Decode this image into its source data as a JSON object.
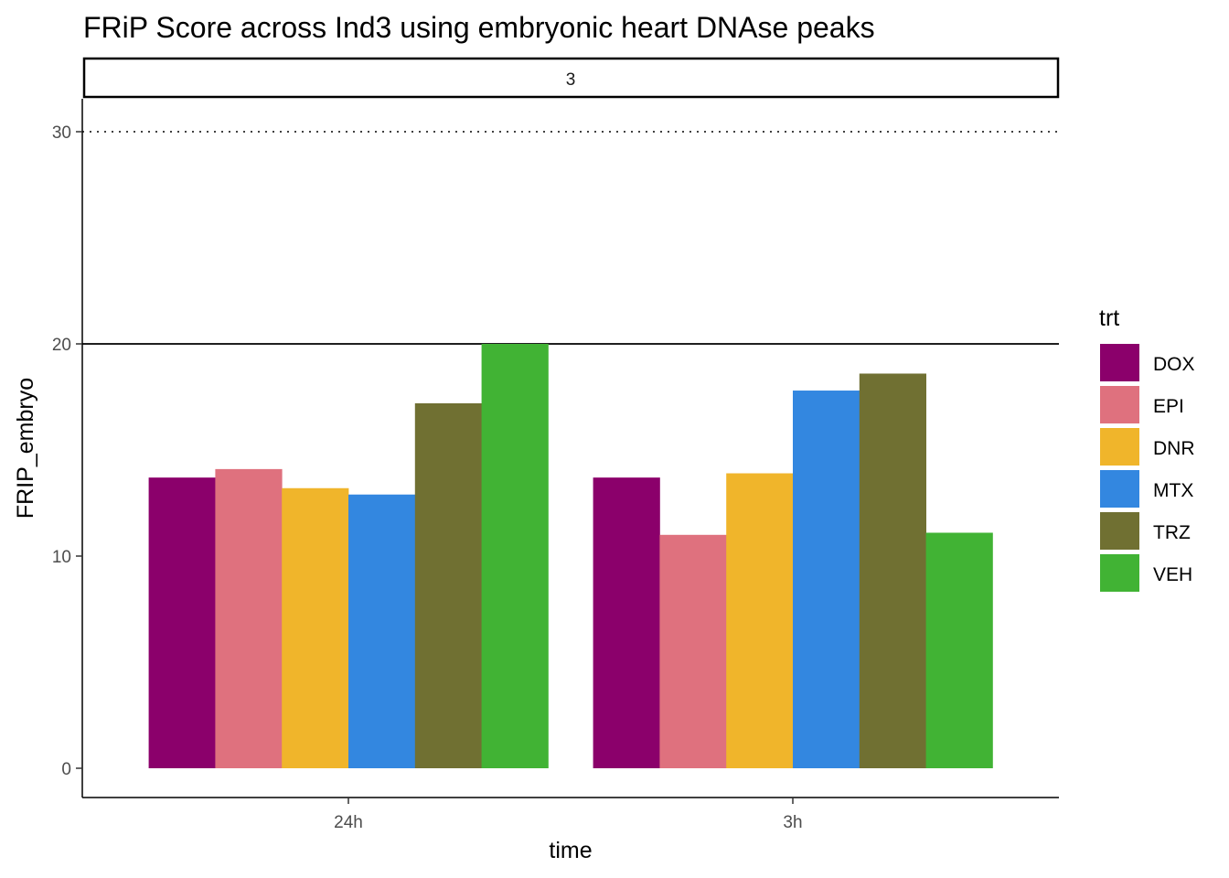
{
  "chart_data": {
    "type": "bar",
    "title": "FRiP Score across Ind3 using embryonic heart DNAse peaks",
    "facet_label": "3",
    "xlabel": "time",
    "ylabel": "FRIP_embryo",
    "categories": [
      "24h",
      "3h"
    ],
    "y_ticks": [
      0,
      10,
      20,
      30
    ],
    "ylim": [
      -1.4,
      31.5
    ],
    "reference_lines": [
      {
        "value": 20,
        "style": "solid"
      },
      {
        "value": 30,
        "style": "dotted"
      }
    ],
    "legend": {
      "title": "trt",
      "position": "right"
    },
    "series": [
      {
        "name": "DOX",
        "color": "#8B006B",
        "values": [
          13.7,
          13.7
        ]
      },
      {
        "name": "EPI",
        "color": "#DF717E",
        "values": [
          14.1,
          11.0
        ]
      },
      {
        "name": "DNR",
        "color": "#F0B52B",
        "values": [
          13.2,
          13.9
        ]
      },
      {
        "name": "MTX",
        "color": "#3387E0",
        "values": [
          12.9,
          17.8
        ]
      },
      {
        "name": "TRZ",
        "color": "#707032",
        "values": [
          17.2,
          18.6
        ]
      },
      {
        "name": "VEH",
        "color": "#41B334",
        "values": [
          20.0,
          11.1
        ]
      }
    ],
    "grid": false
  }
}
